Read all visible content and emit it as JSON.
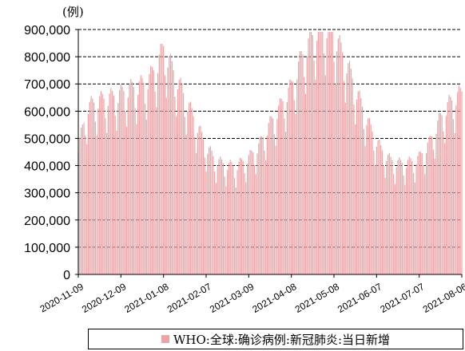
{
  "chart_data": {
    "type": "bar",
    "unit": "(例)",
    "legend": "WHO:全球:确诊病例:新冠肺炎:当日新增",
    "color": "#EBA5A8",
    "ylim": [
      0,
      900000
    ],
    "yticks": [
      0,
      100000,
      200000,
      300000,
      400000,
      500000,
      600000,
      700000,
      800000,
      900000
    ],
    "ytick_labels": [
      "0",
      "100,000",
      "200,000",
      "300,000",
      "400,000",
      "500,000",
      "600,000",
      "700,000",
      "800,000",
      "900,000"
    ],
    "grid": "dashed horizontal",
    "x_start": "2020-11-09",
    "x_end": "2021-08-06",
    "xtick_labels": [
      "2020-11-09",
      "2020-12-09",
      "2021-01-08",
      "2021-02-07",
      "2021-03-09",
      "2021-04-08",
      "2021-05-08",
      "2021-06-07",
      "2021-07-07",
      "2021-08-06"
    ],
    "anchors": [
      [
        "2020-11-09",
        450000
      ],
      [
        "2020-11-16",
        590000
      ],
      [
        "2020-11-23",
        610000
      ],
      [
        "2020-11-30",
        620000
      ],
      [
        "2020-12-07",
        630000
      ],
      [
        "2020-12-14",
        650000
      ],
      [
        "2020-12-21",
        660000
      ],
      [
        "2020-12-28",
        680000
      ],
      [
        "2021-01-04",
        740000
      ],
      [
        "2021-01-08",
        800000
      ],
      [
        "2021-01-11",
        760000
      ],
      [
        "2021-01-18",
        680000
      ],
      [
        "2021-01-25",
        600000
      ],
      [
        "2021-02-01",
        520000
      ],
      [
        "2021-02-07",
        450000
      ],
      [
        "2021-02-14",
        400000
      ],
      [
        "2021-02-21",
        385000
      ],
      [
        "2021-02-28",
        380000
      ],
      [
        "2021-03-09",
        410000
      ],
      [
        "2021-03-16",
        450000
      ],
      [
        "2021-03-23",
        520000
      ],
      [
        "2021-03-30",
        580000
      ],
      [
        "2021-04-08",
        660000
      ],
      [
        "2021-04-15",
        760000
      ],
      [
        "2021-04-22",
        830000
      ],
      [
        "2021-04-29",
        880000
      ],
      [
        "2021-05-06",
        860000
      ],
      [
        "2021-05-13",
        790000
      ],
      [
        "2021-05-20",
        700000
      ],
      [
        "2021-05-27",
        600000
      ],
      [
        "2021-06-03",
        510000
      ],
      [
        "2021-06-10",
        440000
      ],
      [
        "2021-06-17",
        400000
      ],
      [
        "2021-06-24",
        390000
      ],
      [
        "2021-07-01",
        395000
      ],
      [
        "2021-07-07",
        410000
      ],
      [
        "2021-07-14",
        460000
      ],
      [
        "2021-07-21",
        540000
      ],
      [
        "2021-07-28",
        600000
      ],
      [
        "2021-08-06",
        640000
      ]
    ]
  }
}
